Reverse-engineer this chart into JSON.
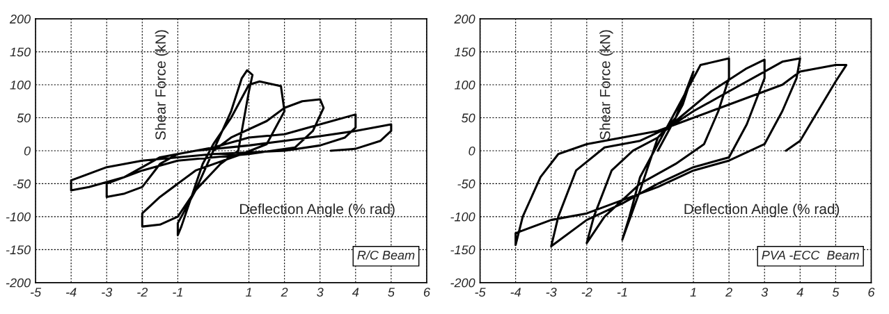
{
  "chart_data": [
    {
      "type": "line",
      "xlabel": "Deflection Angle (% rad)",
      "ylabel": "Shear Force (kN)",
      "xlim": [
        -5,
        6
      ],
      "ylim": [
        -200,
        200
      ],
      "xticks": [
        -5,
        -4,
        -3,
        -2,
        -1,
        1,
        2,
        3,
        4,
        5,
        6
      ],
      "yticks": [
        -200,
        -150,
        -100,
        -50,
        0,
        50,
        100,
        150,
        200
      ],
      "grid": true,
      "annotations": [
        "R/C Beam"
      ],
      "series": [
        {
          "color": "#000000",
          "x": [
            0,
            0.5,
            0.8,
            0.95,
            1.1,
            1.0,
            0.7,
            0.2,
            -0.5,
            -1.0,
            -1.0,
            -0.9,
            -0.3,
            0,
            0.5,
            1.0,
            1.3,
            1.9,
            2.0,
            1.5,
            0.8,
            -0.5,
            -1.5,
            -2.0,
            -2.0,
            -1.5,
            -1.0,
            -0.5,
            0,
            0.5,
            1.5,
            2.0,
            2.5,
            3.0,
            3.1,
            2.8,
            2.3,
            1.0,
            -1.0,
            -2.0,
            -3.0,
            -3.0,
            -2.5,
            -2.0,
            -1.5,
            -1.0,
            0,
            1.0,
            2.0,
            3.0,
            4.0,
            4.0,
            3.7,
            3.0,
            2.0,
            0,
            -1.0,
            -2.0,
            -3.0,
            -4.0,
            -4.0,
            -3.5,
            -2.5,
            -1.5,
            -0.5,
            1.0,
            2.0,
            3.0,
            4.0,
            5.0,
            5.0,
            4.7,
            4.0,
            3.3
          ],
          "values": [
            0,
            60,
            110,
            122,
            115,
            90,
            0,
            -20,
            -60,
            -110,
            -128,
            -115,
            -20,
            10,
            50,
            100,
            105,
            98,
            60,
            10,
            -5,
            -30,
            -70,
            -95,
            -115,
            -112,
            -100,
            -60,
            0,
            20,
            45,
            65,
            75,
            78,
            65,
            30,
            5,
            -5,
            -15,
            -30,
            -50,
            -70,
            -65,
            -55,
            -20,
            -5,
            5,
            20,
            25,
            40,
            55,
            35,
            20,
            8,
            0,
            -5,
            -10,
            -15,
            -25,
            -45,
            -60,
            -55,
            -40,
            -10,
            0,
            8,
            15,
            22,
            30,
            40,
            30,
            15,
            3,
            0
          ]
        }
      ]
    },
    {
      "type": "line",
      "xlabel": "Deflection Angle (% rad)",
      "ylabel": "Shear Force (kN)",
      "xlim": [
        -5,
        6
      ],
      "ylim": [
        -200,
        200
      ],
      "xticks": [
        -5,
        -4,
        -3,
        -2,
        -1,
        1,
        2,
        3,
        4,
        5,
        6
      ],
      "yticks": [
        -200,
        -150,
        -100,
        -50,
        0,
        50,
        100,
        150,
        200
      ],
      "grid": true,
      "annotations": [
        "PVA -ECC  Beam"
      ],
      "series": [
        {
          "color": "#000000",
          "x": [
            0,
            0.7,
            1.0,
            0.5,
            0,
            -0.5,
            -1.0,
            -0.8,
            -0.5,
            0,
            0.5,
            1.2,
            2.0,
            2.0,
            1.7,
            1.3,
            0.5,
            -0.5,
            -1.5,
            -2.0,
            -1.8,
            -1.3,
            -0.7,
            0,
            0.5,
            1.5,
            2.5,
            3.0,
            3.0,
            2.5,
            2.0,
            1.0,
            0,
            -1.0,
            -2.0,
            -3.0,
            -2.8,
            -2.3,
            -1.5,
            -0.5,
            0.3,
            1.0,
            2.0,
            3.0,
            3.5,
            4.0,
            3.9,
            3.5,
            3.0,
            2.0,
            1.0,
            0,
            -1.0,
            -2.0,
            -3.0,
            -4.0,
            -4.0,
            -3.8,
            -3.3,
            -2.8,
            -2.0,
            -1.0,
            0,
            0.5,
            1.5,
            2.5,
            3.5,
            4.0,
            5.0,
            5.3,
            5.0,
            4.5,
            4.0,
            3.6
          ],
          "values": [
            0,
            70,
            120,
            50,
            20,
            -60,
            -135,
            -100,
            -40,
            10,
            60,
            130,
            140,
            110,
            60,
            10,
            -20,
            -50,
            -100,
            -140,
            -100,
            -30,
            0,
            20,
            45,
            90,
            125,
            138,
            110,
            40,
            -10,
            -25,
            -50,
            -80,
            -105,
            -145,
            -100,
            -30,
            5,
            15,
            35,
            60,
            90,
            120,
            135,
            140,
            110,
            60,
            10,
            -15,
            -30,
            -55,
            -75,
            -95,
            -105,
            -125,
            -143,
            -100,
            -40,
            -5,
            10,
            20,
            30,
            40,
            60,
            80,
            100,
            120,
            130,
            130,
            105,
            60,
            15,
            0
          ]
        }
      ]
    }
  ]
}
